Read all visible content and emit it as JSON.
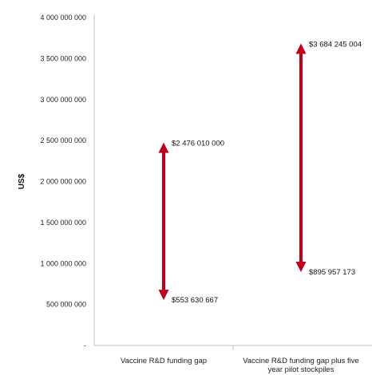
{
  "chart_data": {
    "type": "range",
    "title": "",
    "xlabel": "",
    "ylabel": "US$",
    "ylim": [
      0,
      4000000000
    ],
    "yticks": [
      0,
      500000000,
      1000000000,
      1500000000,
      2000000000,
      2500000000,
      3000000000,
      3500000000,
      4000000000
    ],
    "ytick_labels": [
      "-",
      "500 000 000",
      "1 000 000 000",
      "1 500 000 000",
      "2 000 000 000",
      "2 500 000 000",
      "3 000 000 000",
      "3 500 000 000",
      "4 000 000 000"
    ],
    "categories": [
      [
        "Vaccine R&D funding gap"
      ],
      [
        "Vaccine R&D funding gap plus five",
        "year pilot stockpiles"
      ]
    ],
    "ranges": [
      {
        "low": 553630667,
        "high": 2476010000,
        "low_label": "$553 630 667",
        "high_label": "$2 476 010 000"
      },
      {
        "low": 895957173,
        "high": 3684245004,
        "low_label": "$895 957 173",
        "high_label": "$3 684 245 004"
      }
    ],
    "arrow_color": "#c0001a",
    "axis_color": "#bfbfbf"
  }
}
